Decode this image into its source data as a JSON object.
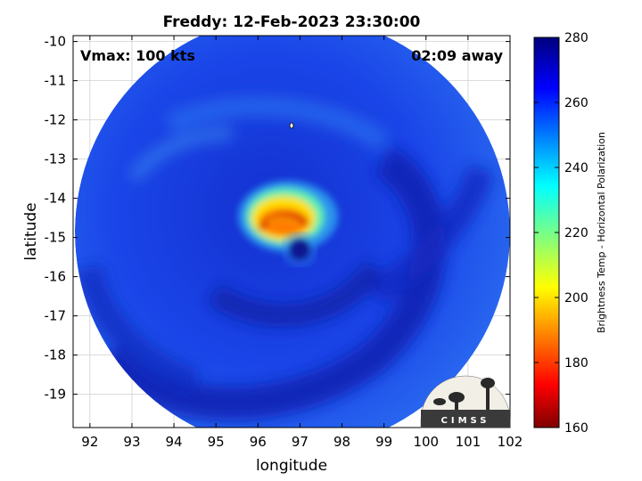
{
  "title": "Freddy: 12-Feb-2023 23:30:00",
  "vmax_label": "Vmax: 100 kts",
  "time_away_label": "02:09 away",
  "xlabel": "longitude",
  "ylabel": "latitude",
  "xticks": [
    "92",
    "93",
    "94",
    "95",
    "96",
    "97",
    "98",
    "99",
    "100",
    "101",
    "102"
  ],
  "yticks": [
    "-10",
    "-11",
    "-12",
    "-13",
    "-14",
    "-15",
    "-16",
    "-17",
    "-18",
    "-19"
  ],
  "colorbar": {
    "label": "Brightness Temp - Horizontal Polarization",
    "ticks": [
      "280",
      "260",
      "240",
      "220",
      "200",
      "180",
      "160"
    ],
    "range": [
      160,
      280
    ],
    "colormap": "jet"
  },
  "logo_text": "CIMSS",
  "colors": {
    "cold_background": "#1a3fe0",
    "deep_band": "#1122b0",
    "warm_core": "#ffe000",
    "hot_core": "#ff2a00",
    "eye": "#0a128c"
  },
  "chart_data": {
    "type": "heatmap",
    "title": "Freddy: 12-Feb-2023 23:30:00",
    "xlabel": "longitude",
    "ylabel": "latitude",
    "xlim": [
      91.6,
      102
    ],
    "ylim": [
      -19.85,
      -9.85
    ],
    "storm_center": {
      "lon": 96.8,
      "lat": -14.8
    },
    "eye": {
      "lon": 97.0,
      "lat": -15.35
    },
    "colorbar_range": [
      160,
      280
    ],
    "grid": true
  }
}
